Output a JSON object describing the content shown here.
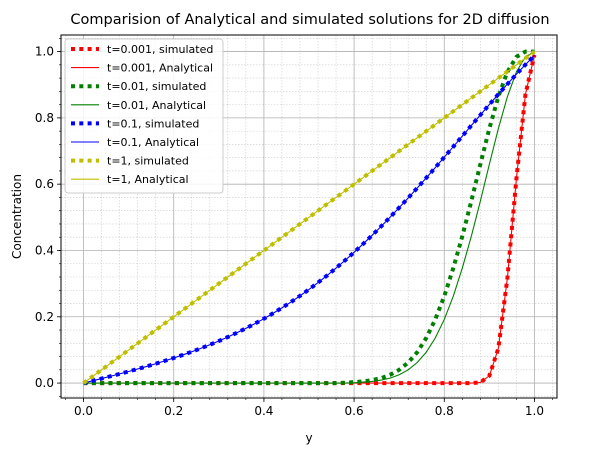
{
  "chart_data": {
    "type": "line",
    "title": "Comparision of Analytical and simulated solutions for 2D diffusion",
    "xlabel": "y",
    "ylabel": "Concentration",
    "xlim": [
      -0.05,
      1.05
    ],
    "ylim": [
      -0.045,
      1.05
    ],
    "xticks": [
      "0.0",
      "0.2",
      "0.4",
      "0.6",
      "0.8",
      "1.0"
    ],
    "yticks": [
      "0.0",
      "0.2",
      "0.4",
      "0.6",
      "0.8",
      "1.0"
    ],
    "grid": true,
    "minor_grid": true,
    "legend_position": "top-left",
    "x": [
      0.0,
      0.02,
      0.04,
      0.06,
      0.08,
      0.1,
      0.12,
      0.14,
      0.16,
      0.18,
      0.2,
      0.22,
      0.24,
      0.26,
      0.28,
      0.3,
      0.32,
      0.34,
      0.36,
      0.38,
      0.4,
      0.42,
      0.44,
      0.46,
      0.48,
      0.5,
      0.52,
      0.54,
      0.56,
      0.58,
      0.6,
      0.62,
      0.64,
      0.66,
      0.68,
      0.7,
      0.72,
      0.74,
      0.76,
      0.78,
      0.8,
      0.82,
      0.84,
      0.86,
      0.88,
      0.9,
      0.92,
      0.94,
      0.96,
      0.98,
      1.0
    ],
    "series": [
      {
        "name": "t=0.001, simulated",
        "kind": "simulated",
        "color": "#ff0000",
        "values": [
          0,
          0,
          0,
          0,
          0,
          0,
          0,
          0,
          0,
          0,
          0,
          0,
          0,
          0,
          0,
          0,
          0,
          0,
          0,
          0,
          0,
          0,
          0,
          0,
          0,
          0,
          0,
          0,
          0,
          0,
          0,
          0,
          0,
          0,
          0,
          0,
          0,
          0,
          0,
          0,
          0,
          0,
          0,
          0,
          0.002,
          0.022,
          0.105,
          0.317,
          0.617,
          0.871,
          0.99
        ]
      },
      {
        "name": "t=0.001, Analytical",
        "kind": "analytical",
        "color": "#ff0000",
        "values": [
          0,
          0,
          0,
          0,
          0,
          0,
          0,
          0,
          0,
          0,
          0,
          0,
          0,
          0,
          0,
          0,
          0,
          0,
          0,
          0,
          0,
          0,
          0,
          0,
          0,
          0,
          0,
          0,
          0,
          0,
          0,
          0,
          0,
          0,
          0,
          0,
          0,
          0,
          0,
          0,
          0,
          0,
          0,
          0,
          0.002,
          0.022,
          0.105,
          0.317,
          0.617,
          0.871,
          0.99
        ]
      },
      {
        "name": "t=0.01, simulated",
        "kind": "simulated",
        "color": "#008000",
        "values": [
          0,
          0,
          0,
          0,
          0,
          0,
          0,
          0,
          0,
          0,
          0,
          0,
          0,
          0,
          0,
          0,
          0,
          0,
          0,
          0,
          0,
          0,
          0,
          0,
          0,
          0,
          0,
          0,
          0,
          0.001,
          0.003,
          0.005,
          0.009,
          0.015,
          0.025,
          0.04,
          0.062,
          0.093,
          0.136,
          0.192,
          0.262,
          0.347,
          0.443,
          0.549,
          0.66,
          0.768,
          0.864,
          0.939,
          0.984,
          1.0,
          1.0
        ]
      },
      {
        "name": "t=0.01, Analytical",
        "kind": "analytical",
        "color": "#008000",
        "values": [
          0,
          0,
          0,
          0,
          0,
          0,
          0,
          0,
          0,
          0,
          0,
          0,
          0,
          0,
          0,
          0,
          0,
          0,
          0,
          0,
          0,
          0,
          0,
          0,
          0,
          0,
          0,
          0,
          0,
          0,
          0.001,
          0.003,
          0.005,
          0.009,
          0.015,
          0.025,
          0.04,
          0.062,
          0.093,
          0.136,
          0.192,
          0.262,
          0.347,
          0.443,
          0.549,
          0.66,
          0.768,
          0.864,
          0.939,
          0.984,
          1.0
        ]
      },
      {
        "name": "t=0.1, simulated",
        "kind": "simulated",
        "color": "#0000ff",
        "values": [
          0.0,
          0.0068,
          0.0136,
          0.0206,
          0.0277,
          0.035,
          0.0425,
          0.0503,
          0.0584,
          0.0669,
          0.0757,
          0.0849,
          0.0946,
          0.1048,
          0.1156,
          0.127,
          0.139,
          0.1517,
          0.1651,
          0.1793,
          0.1943,
          0.2102,
          0.2269,
          0.2445,
          0.2631,
          0.2826,
          0.3031,
          0.3245,
          0.3469,
          0.3702,
          0.3945,
          0.4197,
          0.4458,
          0.4728,
          0.5006,
          0.5292,
          0.5585,
          0.5885,
          0.619,
          0.65,
          0.6814,
          0.7131,
          0.745,
          0.7769,
          0.8087,
          0.8403,
          0.8714,
          0.902,
          0.9318,
          0.9606,
          0.9882
        ]
      },
      {
        "name": "t=0.1, Analytical",
        "kind": "analytical",
        "color": "#0000ff",
        "values": [
          0.0,
          0.0068,
          0.0136,
          0.0206,
          0.0277,
          0.035,
          0.0425,
          0.0503,
          0.0584,
          0.0669,
          0.0757,
          0.0849,
          0.0946,
          0.1048,
          0.1156,
          0.127,
          0.139,
          0.1517,
          0.1651,
          0.1793,
          0.1943,
          0.2102,
          0.2269,
          0.2445,
          0.2631,
          0.2826,
          0.3031,
          0.3245,
          0.3469,
          0.3702,
          0.3945,
          0.4197,
          0.4458,
          0.4728,
          0.5006,
          0.5292,
          0.5585,
          0.5885,
          0.619,
          0.65,
          0.6814,
          0.7131,
          0.745,
          0.7769,
          0.8087,
          0.8403,
          0.8714,
          0.902,
          0.9318,
          0.9606,
          0.9882
        ]
      },
      {
        "name": "t=1, simulated",
        "kind": "simulated",
        "color": "#bfbf00",
        "values": [
          0.0,
          0.02,
          0.04,
          0.06,
          0.08,
          0.1,
          0.12,
          0.14,
          0.16,
          0.18,
          0.2,
          0.22,
          0.24,
          0.26,
          0.28,
          0.3,
          0.32,
          0.34,
          0.36,
          0.38,
          0.4,
          0.42,
          0.44,
          0.46,
          0.48,
          0.5,
          0.52,
          0.54,
          0.56,
          0.58,
          0.6,
          0.62,
          0.64,
          0.66,
          0.68,
          0.7,
          0.72,
          0.74,
          0.76,
          0.78,
          0.8,
          0.82,
          0.84,
          0.86,
          0.88,
          0.9,
          0.92,
          0.94,
          0.96,
          0.98,
          1.0
        ]
      },
      {
        "name": "t=1, Analytical",
        "kind": "analytical",
        "color": "#bfbf00",
        "values": [
          0.0,
          0.02,
          0.04,
          0.06,
          0.08,
          0.1,
          0.12,
          0.14,
          0.16,
          0.18,
          0.2,
          0.22,
          0.24,
          0.26,
          0.28,
          0.3,
          0.32,
          0.34,
          0.36,
          0.38,
          0.4,
          0.42,
          0.44,
          0.46,
          0.48,
          0.5,
          0.52,
          0.54,
          0.56,
          0.58,
          0.6,
          0.62,
          0.64,
          0.66,
          0.68,
          0.7,
          0.72,
          0.74,
          0.76,
          0.78,
          0.8,
          0.82,
          0.84,
          0.86,
          0.88,
          0.9,
          0.92,
          0.94,
          0.96,
          0.98,
          1.0
        ]
      }
    ]
  }
}
